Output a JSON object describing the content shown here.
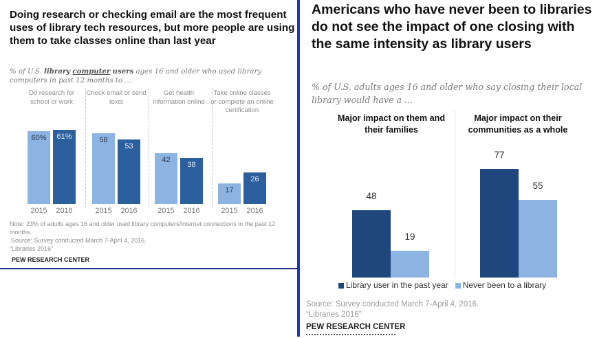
{
  "colors": {
    "light_blue": "#8db3e2",
    "mid_blue": "#2c5f9e",
    "dark_blue": "#1f477d",
    "divider_blue": "#1d34c4"
  },
  "left_panel": {
    "title": "Doing research or checking email are the most frequent uses of library tech resources, but more people are using them to take classes online than last year",
    "subtitle_parts": {
      "pre": "% of U.S. ",
      "bold1": "library",
      "underlined": "computer",
      "bold2": "users",
      "post": " ages 16 and older who used library computers in past 12 months to ..."
    },
    "note": "Note: 23% of adults ages 16 and older used library computers/internet connections in the past 12 months.",
    "source": "Source: Survey conducted March 7-April 4, 2016.",
    "report": "“Libraries 2016”",
    "org": "PEW RESEARCH CENTER"
  },
  "right_panel": {
    "title": "Americans who have never been to libraries do not see the impact of one closing with the same intensity as library users",
    "subtitle": "% of U.S. adults ages 16 and older who say closing their local library would have a ...",
    "source": "Source: Survey conducted March 7-April 4, 2016.",
    "report": "“Libraries 2016”",
    "org": "PEW RESEARCH CENTER"
  },
  "chart_data": [
    {
      "type": "bar",
      "title": "Doing research or checking email are the most frequent uses of library tech resources, but more people are using them to take classes online than last year",
      "categories": [
        "Do research for school or work",
        "Check email or send texts",
        "Get health information online",
        "Take online classes or complete an online certification"
      ],
      "x_sublabels": [
        "2015",
        "2016"
      ],
      "series": [
        {
          "name": "2015",
          "values": [
            60,
            58,
            42,
            17
          ],
          "labels": [
            "60%",
            "58",
            "42",
            "17"
          ]
        },
        {
          "name": "2016",
          "values": [
            61,
            53,
            38,
            26
          ],
          "labels": [
            "61%",
            "53",
            "38",
            "26"
          ]
        }
      ],
      "ylim": [
        0,
        100
      ],
      "grid": false,
      "unit": "%"
    },
    {
      "type": "bar",
      "title": "Americans who have never been to libraries do not see the impact of one closing with the same intensity as library users",
      "categories": [
        "Major impact on them and their families",
        "Major impact on their communities as a whole"
      ],
      "series": [
        {
          "name": "Library user in the past year",
          "values": [
            48,
            77
          ]
        },
        {
          "name": "Never been to a library",
          "values": [
            19,
            55
          ]
        }
      ],
      "ylim": [
        0,
        100
      ],
      "grid": false,
      "legend": "bottom"
    }
  ]
}
